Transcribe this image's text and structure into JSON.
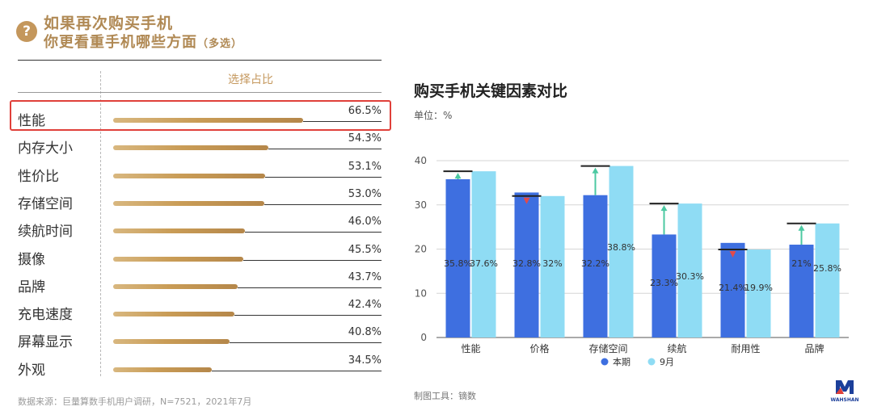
{
  "left": {
    "question_icon": "?",
    "question_line1": "如果再次购买手机",
    "question_line2": "你更看重手机哪些方面",
    "question_tag": "（多选）",
    "column_header": "选择占比",
    "source": "数据来源：巨量算数手机用户调研，N=7521，2021年7月",
    "accent_color": "#c4975c",
    "highlight_color": "#e0403a",
    "rows": [
      {
        "label": "性能",
        "pct": 66.5,
        "value": "66.5%",
        "highlight": true
      },
      {
        "label": "内存大小",
        "pct": 54.3,
        "value": "54.3%"
      },
      {
        "label": "性价比",
        "pct": 53.1,
        "value": "53.1%"
      },
      {
        "label": "存储空间",
        "pct": 53.0,
        "value": "53.0%"
      },
      {
        "label": "续航时间",
        "pct": 46.0,
        "value": "46.0%"
      },
      {
        "label": "摄像",
        "pct": 45.5,
        "value": "45.5%"
      },
      {
        "label": "品牌",
        "pct": 43.7,
        "value": "43.7%"
      },
      {
        "label": "充电速度",
        "pct": 42.4,
        "value": "42.4%"
      },
      {
        "label": "屏幕显示",
        "pct": 40.8,
        "value": "40.8%"
      },
      {
        "label": "外观",
        "pct": 34.5,
        "value": "34.5%"
      }
    ]
  },
  "chart_data": {
    "type": "bar",
    "title": "购买手机关键因素对比",
    "unit_label": "单位：%",
    "categories": [
      "性能",
      "价格",
      "存储空间",
      "续航",
      "耐用性",
      "品牌"
    ],
    "series": [
      {
        "name": "本期",
        "color": "#3e6fe0",
        "values": [
          35.8,
          32.8,
          32.2,
          23.3,
          21.4,
          21
        ],
        "labels": [
          "35.8%",
          "32.8%",
          "32.2%",
          "23.3%",
          "21.4%",
          "21%"
        ]
      },
      {
        "name": "9月",
        "color": "#8fdcf4",
        "values": [
          37.6,
          32,
          38.8,
          30.3,
          19.9,
          25.8
        ],
        "labels": [
          "37.6%",
          "32%",
          "38.8%",
          "30.3%",
          "19.9%",
          "25.8%"
        ]
      }
    ],
    "yticks": [
      "0",
      "10",
      "20",
      "30",
      "40"
    ],
    "ylim": [
      0,
      40
    ],
    "increase_color": "#4cc9a2",
    "decrease_color": "#e34a4a",
    "legend_position": "bottom",
    "tool_note": "制图工具：镝数",
    "logo_text": "WAHSHAN"
  }
}
